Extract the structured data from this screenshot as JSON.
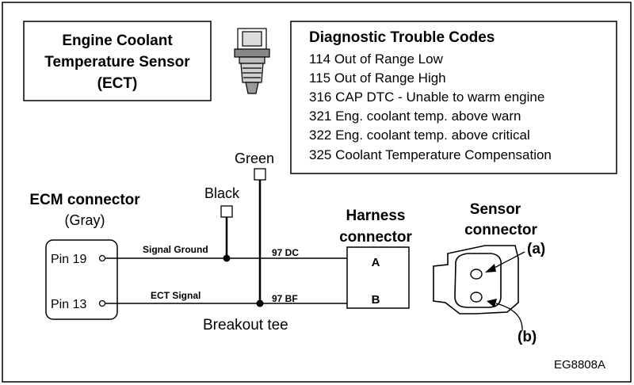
{
  "sensor_box": {
    "line1": "Engine Coolant",
    "line2": "Temperature Sensor",
    "line3": "(ECT)"
  },
  "dtc": {
    "title": "Diagnostic Trouble Codes",
    "codes": [
      "114 Out of Range Low",
      "115 Out of Range High",
      "316 CAP  DTC - Unable to warm engine",
      "321 Eng. coolant temp. above warn",
      "322 Eng. coolant temp. above critical",
      "325 Coolant Temperature Compensation"
    ]
  },
  "ecm": {
    "title": "ECM connector",
    "subtitle": "(Gray)",
    "pin_top": "Pin 19",
    "pin_bottom": "Pin 13"
  },
  "wires": {
    "top_signal": "Signal Ground",
    "bottom_signal": "ECT Signal",
    "top_circuit": "97 DC",
    "bottom_circuit": "97 BF"
  },
  "breakout": {
    "black": "Black",
    "green": "Green",
    "label": "Breakout tee"
  },
  "harness": {
    "title1": "Harness",
    "title2": "connector",
    "pin_a": "A",
    "pin_b": "B"
  },
  "sensor_connector": {
    "title1": "Sensor",
    "title2": "connector",
    "label_a": "(a)",
    "label_b": "(b)"
  },
  "figure_id": "EG8808A"
}
